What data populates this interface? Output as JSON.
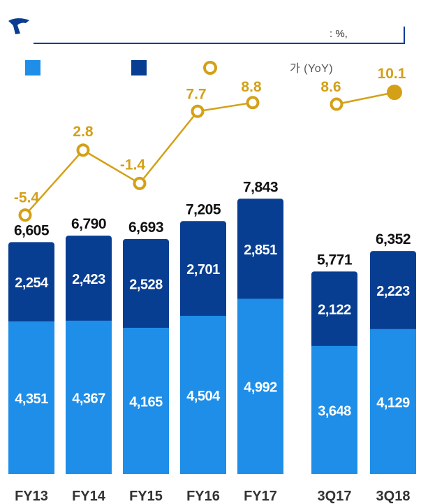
{
  "header": {
    "unit": ": %,"
  },
  "colors": {
    "segment_bottom": "#1e8ee8",
    "segment_top": "#083e92",
    "line": "#d4a017",
    "marker_fill_last": "#d4a017",
    "marker_fill": "#ffffff",
    "bar_label": "#ffffff",
    "total_label": "#111111",
    "axis_label": "#333333"
  },
  "chart_data": {
    "type": "bar",
    "stacked": true,
    "categories": [
      "FY13",
      "FY14",
      "FY15",
      "FY16",
      "FY17",
      "3Q17",
      "3Q18"
    ],
    "series": [
      {
        "values": [
          4351,
          4367,
          4165,
          4504,
          4992,
          3648,
          4129
        ]
      },
      {
        "values": [
          2254,
          2423,
          2528,
          2701,
          2851,
          2122,
          2223
        ]
      }
    ],
    "totals": [
      6605,
      6790,
      6693,
      7205,
      7843,
      5771,
      6352
    ],
    "totals_labels": [
      "6,605",
      "6,790",
      "6,693",
      "7,205",
      "7,843",
      "5,771",
      "6,352"
    ],
    "bottom_labels": [
      "4,351",
      "4,367",
      "4,165",
      "4,504",
      "4,992",
      "3,648",
      "4,129"
    ],
    "top_labels": [
      "2,254",
      "2,423",
      "2,528",
      "2,701",
      "2,851",
      "2,122",
      "2,223"
    ],
    "growth": {
      "name": "가 (YoY)",
      "values": [
        -5.4,
        2.8,
        -1.4,
        7.7,
        8.8,
        8.6,
        10.1
      ],
      "labels": [
        "-5.4",
        "2.8",
        "-1.4",
        "7.7",
        "8.8",
        "8.6",
        "10.1"
      ],
      "groups": [
        [
          0,
          1,
          2,
          3,
          4
        ],
        [
          5,
          6
        ]
      ]
    },
    "legend": {
      "placement": "top"
    }
  }
}
